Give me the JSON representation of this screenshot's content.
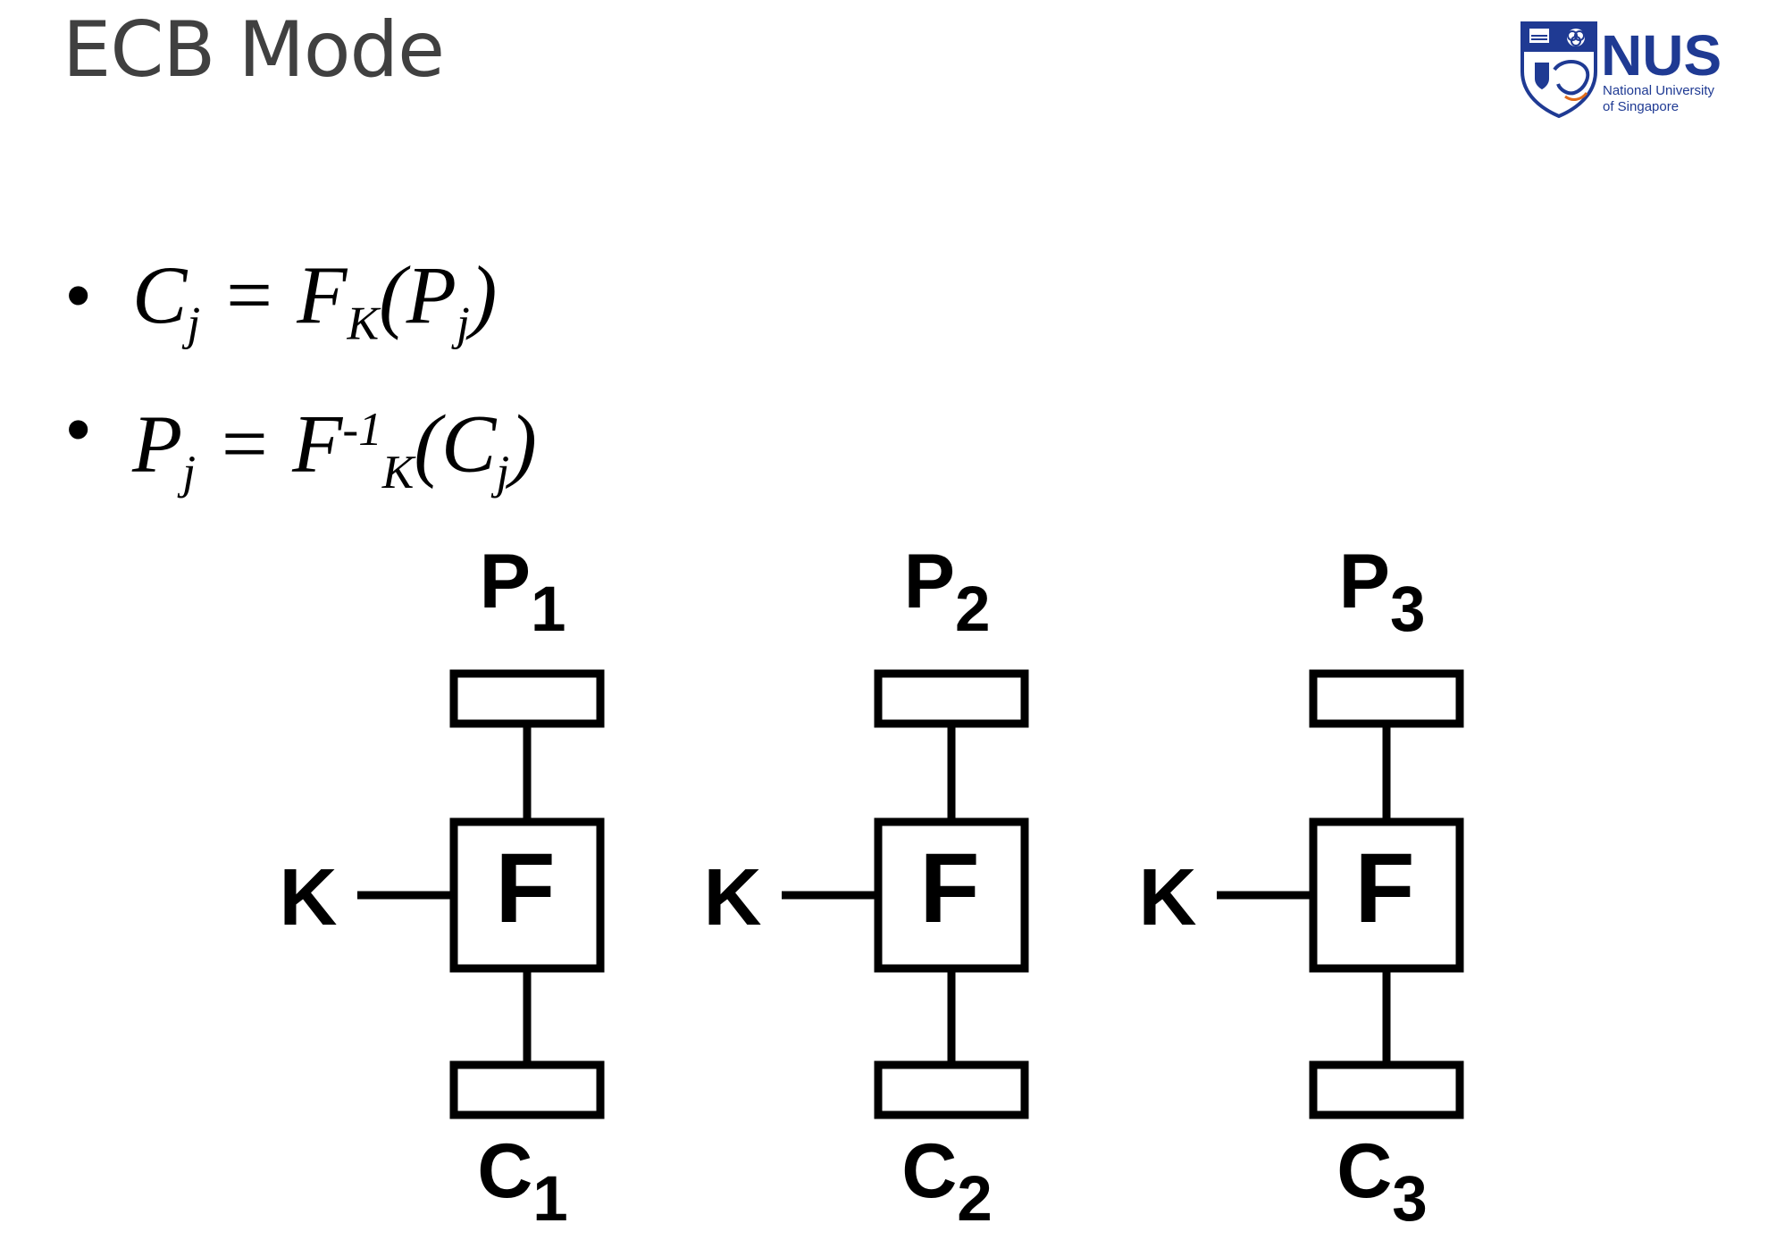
{
  "slide": {
    "title": "ECB Mode"
  },
  "logo": {
    "name": "NUS",
    "line1": "National University",
    "line2": "of Singapore",
    "primary_color": "#1f3a93",
    "accent_color": "#e06b1a"
  },
  "equations": [
    {
      "lhs": "C",
      "lhs_sub": "j",
      "eq": "=",
      "func": "F",
      "func_sup": "",
      "func_sub": "K",
      "arg": "P",
      "arg_sub": "j"
    },
    {
      "lhs": "P",
      "lhs_sub": "j",
      "eq": "=",
      "func": "F",
      "func_sup": "-1",
      "func_sub": "K",
      "arg": "C",
      "arg_sub": "j"
    }
  ],
  "diagram": {
    "blocks": [
      {
        "plain": "P",
        "plain_sub": "1",
        "key": "K",
        "func": "F",
        "cipher": "C",
        "cipher_sub": "1"
      },
      {
        "plain": "P",
        "plain_sub": "2",
        "key": "K",
        "func": "F",
        "cipher": "C",
        "cipher_sub": "2"
      },
      {
        "plain": "P",
        "plain_sub": "3",
        "key": "K",
        "func": "F",
        "cipher": "C",
        "cipher_sub": "3"
      }
    ]
  }
}
